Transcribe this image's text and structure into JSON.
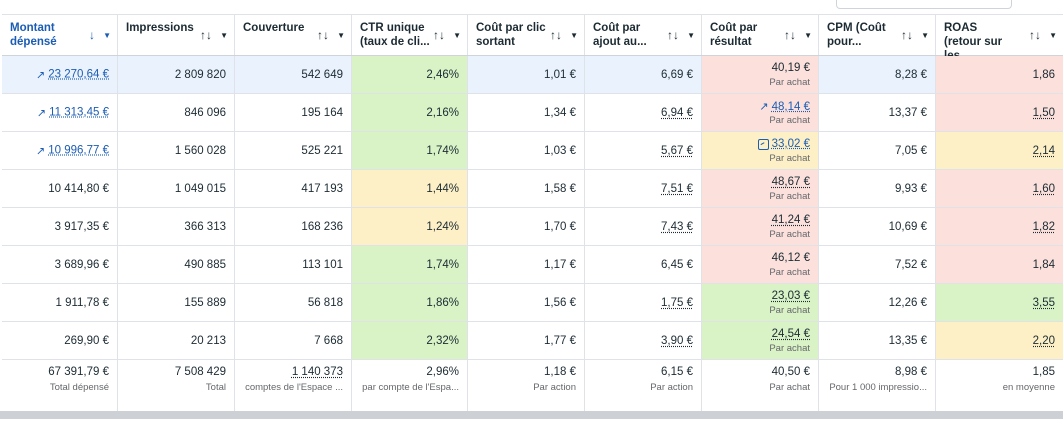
{
  "colors": {
    "green": "#d9f2c6",
    "red": "#fbe0dc",
    "yellow": "#fdf0c6",
    "selected": "#eaf3fd",
    "link": "#1b5db3"
  },
  "headers": [
    {
      "label": "Montant dépensé",
      "sort": "↓"
    },
    {
      "label": "Impressions",
      "sort": "↑↓"
    },
    {
      "label": "Couverture",
      "sort": "↑↓"
    },
    {
      "label": "CTR unique (taux de cli...",
      "sort": "↑↓"
    },
    {
      "label": "Coût par clic sortant",
      "sort": "↑↓"
    },
    {
      "label": "Coût par ajout au...",
      "sort": "↑↓"
    },
    {
      "label": "Coût par résultat",
      "sort": "↑↓"
    },
    {
      "label": "CPM (Coût pour...",
      "sort": "↑↓"
    },
    {
      "label": "ROAS (retour sur les...",
      "sort": "↑↓"
    }
  ],
  "menu_icon": "▼",
  "rows": [
    {
      "cells": [
        {
          "v": "23 270,64 €",
          "link": true,
          "trend": true
        },
        {
          "v": "2 809 820"
        },
        {
          "v": "542 649"
        },
        {
          "v": "2,46%",
          "bg": "green"
        },
        {
          "v": "1,01 €"
        },
        {
          "v": "6,69 €"
        },
        {
          "v": "40,19 €",
          "sub": "Par achat",
          "bg": "red"
        },
        {
          "v": "8,28 €"
        },
        {
          "v": "1,86",
          "bg": "red"
        }
      ]
    },
    {
      "cells": [
        {
          "v": "11 313,45 €",
          "link": true,
          "trend": true
        },
        {
          "v": "846 096"
        },
        {
          "v": "195 164"
        },
        {
          "v": "2,16%",
          "bg": "green"
        },
        {
          "v": "1,34 €"
        },
        {
          "v": "6,94 €",
          "dot": true
        },
        {
          "v": "48,14 €",
          "sub": "Par achat",
          "link": true,
          "trend": true,
          "bg": "red"
        },
        {
          "v": "13,37 €"
        },
        {
          "v": "1,50",
          "dot": true,
          "bg": "red"
        }
      ]
    },
    {
      "cells": [
        {
          "v": "10 996,77 €",
          "link": true,
          "trend": true
        },
        {
          "v": "1 560 028"
        },
        {
          "v": "525 221"
        },
        {
          "v": "1,74%",
          "bg": "green"
        },
        {
          "v": "1,03 €"
        },
        {
          "v": "5,67 €",
          "dot": true
        },
        {
          "v": "33,02 €",
          "sub": "Par achat",
          "link": true,
          "box": true,
          "bg": "yellow"
        },
        {
          "v": "7,05 €"
        },
        {
          "v": "2,14",
          "dot": true,
          "bg": "yellow"
        }
      ]
    },
    {
      "cells": [
        {
          "v": "10 414,80 €"
        },
        {
          "v": "1 049 015"
        },
        {
          "v": "417 193"
        },
        {
          "v": "1,44%",
          "bg": "yellow"
        },
        {
          "v": "1,58 €"
        },
        {
          "v": "7,51 €",
          "dot": true
        },
        {
          "v": "48,67 €",
          "sub": "Par achat",
          "dot": true,
          "bg": "red"
        },
        {
          "v": "9,93 €"
        },
        {
          "v": "1,60",
          "dot": true,
          "bg": "red"
        }
      ]
    },
    {
      "cells": [
        {
          "v": "3 917,35 €"
        },
        {
          "v": "366 313"
        },
        {
          "v": "168 236"
        },
        {
          "v": "1,24%",
          "bg": "yellow"
        },
        {
          "v": "1,70 €"
        },
        {
          "v": "7,43 €",
          "dot": true
        },
        {
          "v": "41,24 €",
          "sub": "Par achat",
          "dot": true,
          "bg": "red"
        },
        {
          "v": "10,69 €"
        },
        {
          "v": "1,82",
          "dot": true,
          "bg": "red"
        }
      ]
    },
    {
      "cells": [
        {
          "v": "3 689,96 €"
        },
        {
          "v": "490 885"
        },
        {
          "v": "113 101"
        },
        {
          "v": "1,74%",
          "bg": "green"
        },
        {
          "v": "1,17 €"
        },
        {
          "v": "6,45 €"
        },
        {
          "v": "46,12 €",
          "sub": "Par achat",
          "bg": "red"
        },
        {
          "v": "7,52 €"
        },
        {
          "v": "1,84",
          "bg": "red"
        }
      ]
    },
    {
      "cells": [
        {
          "v": "1 911,78 €"
        },
        {
          "v": "155 889"
        },
        {
          "v": "56 818"
        },
        {
          "v": "1,86%",
          "bg": "green"
        },
        {
          "v": "1,56 €"
        },
        {
          "v": "1,75 €",
          "dot": true
        },
        {
          "v": "23,03 €",
          "sub": "Par achat",
          "dot": true,
          "bg": "green"
        },
        {
          "v": "12,26 €"
        },
        {
          "v": "3,55",
          "dot": true,
          "bg": "green"
        }
      ]
    },
    {
      "cells": [
        {
          "v": "269,90 €"
        },
        {
          "v": "20 213"
        },
        {
          "v": "7 668"
        },
        {
          "v": "2,32%",
          "bg": "green"
        },
        {
          "v": "1,77 €"
        },
        {
          "v": "3,90 €",
          "dot": true
        },
        {
          "v": "24,54 €",
          "sub": "Par achat",
          "dot": true,
          "bg": "green"
        },
        {
          "v": "13,35 €"
        },
        {
          "v": "2,20",
          "dot": true,
          "bg": "yellow"
        }
      ]
    }
  ],
  "totals": [
    {
      "v": "67 391,79 €",
      "sub": "Total dépensé"
    },
    {
      "v": "7 508 429",
      "sub": "Total"
    },
    {
      "v": "1 140 373",
      "sub": "comptes de l'Espace ...",
      "dot": true
    },
    {
      "v": "2,96%",
      "sub": "par compte de l'Espa..."
    },
    {
      "v": "1,18 €",
      "sub": "Par action"
    },
    {
      "v": "6,15 €",
      "sub": "Par action"
    },
    {
      "v": "40,50 €",
      "sub": "Par achat"
    },
    {
      "v": "8,98 €",
      "sub": "Pour 1 000 impressio..."
    },
    {
      "v": "1,85",
      "sub": "en moyenne"
    }
  ]
}
